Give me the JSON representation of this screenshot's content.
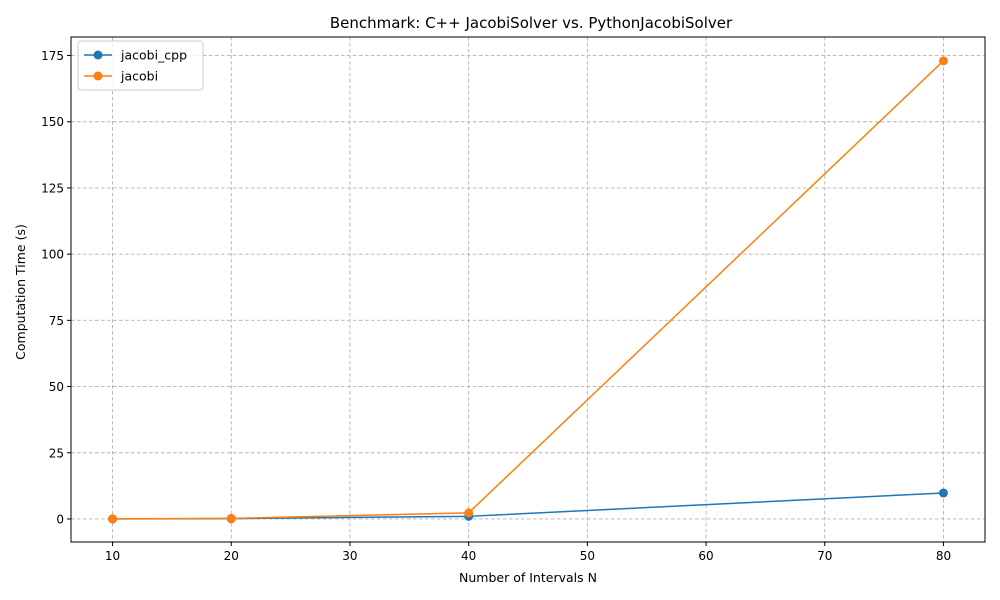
{
  "chart_data": {
    "type": "line",
    "title": "Benchmark: C++ JacobiSolver vs. PythonJacobiSolver",
    "xlabel": "Number of Intervals N",
    "ylabel": "Computation Time (s)",
    "xlim": [
      6.5,
      83.5
    ],
    "ylim": [
      -8.7,
      182.0
    ],
    "xticks": [
      10,
      20,
      30,
      40,
      50,
      60,
      70,
      80
    ],
    "yticks": [
      0,
      25,
      50,
      75,
      100,
      125,
      150,
      175
    ],
    "grid": true,
    "legend_position": "top-left",
    "series": [
      {
        "name": "jacobi_cpp",
        "color": "#1f77b4",
        "x": [
          10,
          20,
          40,
          80
        ],
        "y": [
          0.02,
          0.12,
          1.0,
          9.8
        ]
      },
      {
        "name": "jacobi",
        "color": "#ff7f0e",
        "x": [
          10,
          20,
          40,
          80
        ],
        "y": [
          0.05,
          0.2,
          2.3,
          173.0
        ]
      }
    ]
  }
}
